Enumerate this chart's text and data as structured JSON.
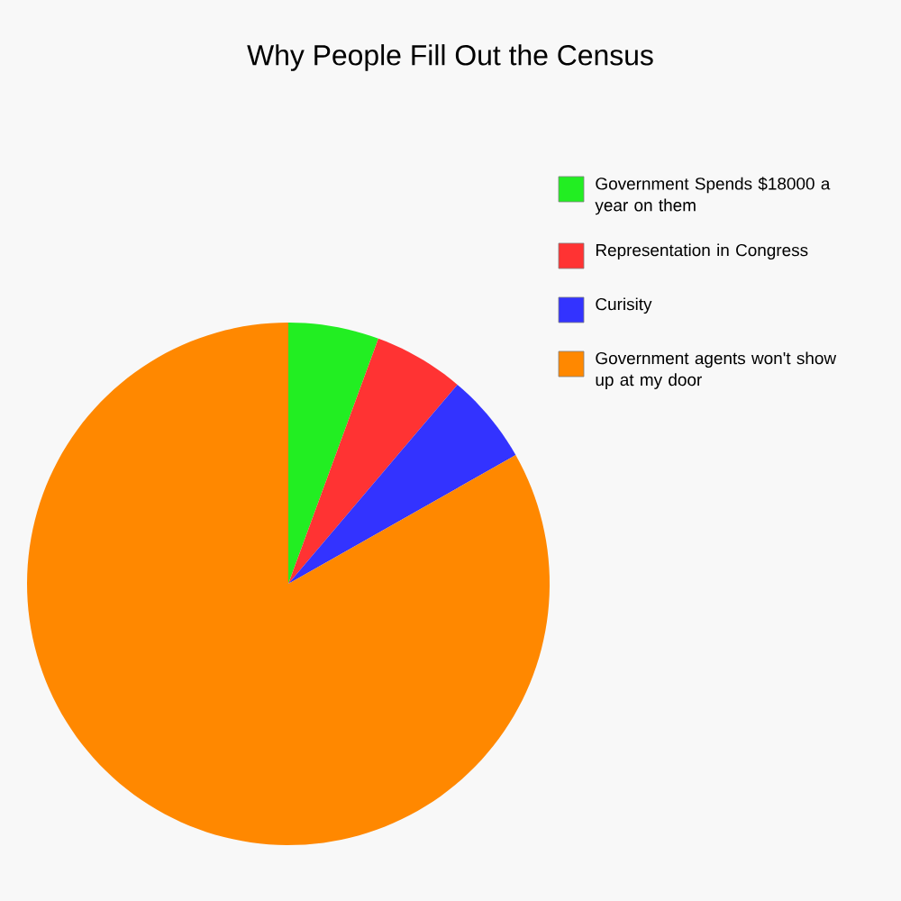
{
  "chart_data": {
    "type": "pie",
    "title": "Why People Fill Out the Census",
    "categories": [
      "Government Spends $18000 a year on them",
      "Representation in Congress",
      "Curisity",
      "Government agents won't show up at my door"
    ],
    "values": [
      5.6,
      5.6,
      5.6,
      83.2
    ],
    "colors": [
      "#22ee22",
      "#ff3333",
      "#3333ff",
      "#ff8800"
    ],
    "legend": "top right"
  }
}
